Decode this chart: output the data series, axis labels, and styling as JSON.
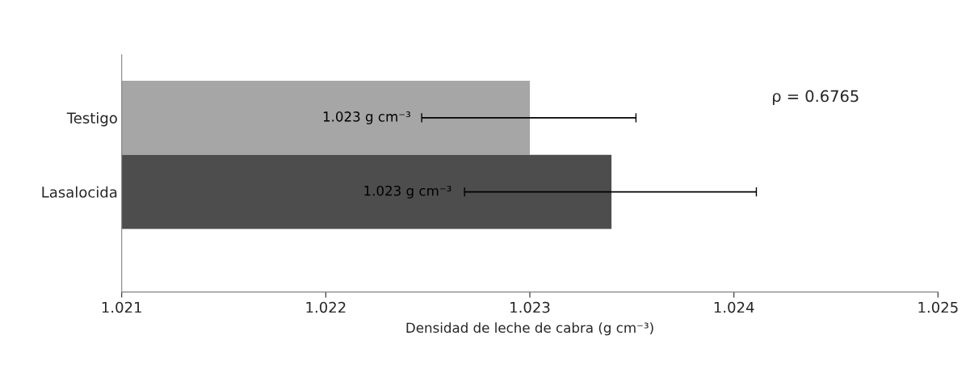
{
  "chart_data": {
    "type": "bar",
    "orientation": "horizontal",
    "categories": [
      "Testigo",
      "Lasalocida"
    ],
    "values": [
      1.023,
      1.0234
    ],
    "colors": [
      "#a6a6a6",
      "#4d4d4d"
    ],
    "errors": [
      [
        1.02247,
        1.02352
      ],
      [
        1.02268,
        1.02411
      ]
    ],
    "value_labels": [
      "1.023 g cm⁻³",
      "1.023 g cm⁻³"
    ],
    "xlabel": "Densidad de leche de cabra (g cm⁻³)",
    "annotations": [
      "ρ = 0.6765"
    ],
    "xlim": [
      1.021,
      1.025
    ],
    "xticks": [
      1.021,
      1.022,
      1.023,
      1.024,
      1.025
    ],
    "grid": false,
    "legend": false
  }
}
